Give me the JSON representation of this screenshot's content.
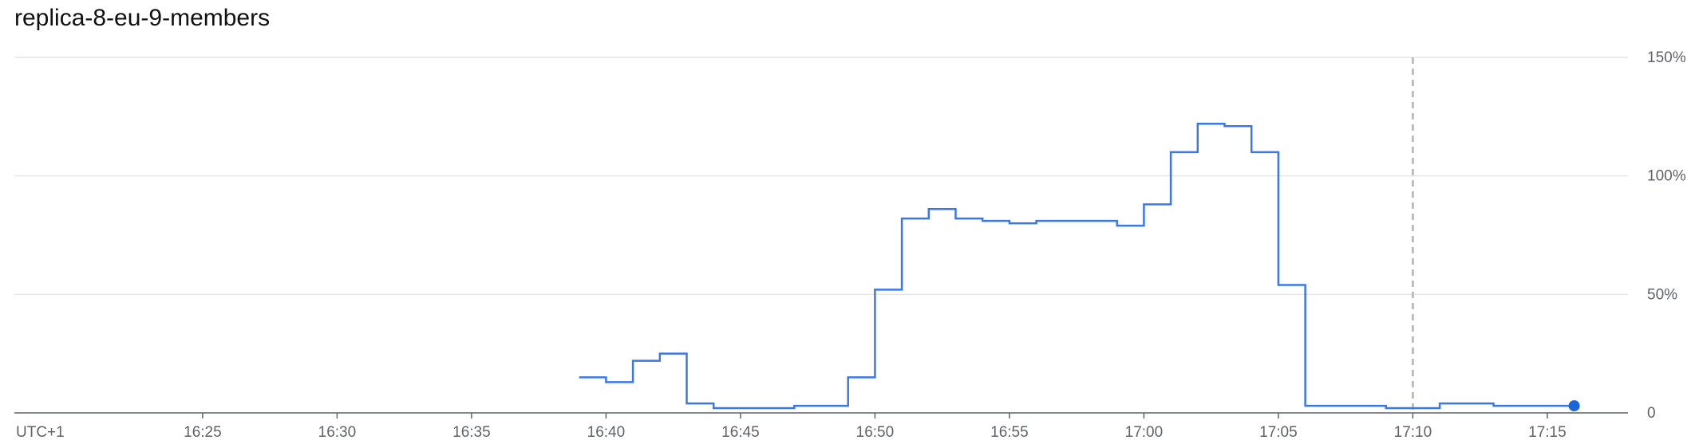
{
  "chart_data": {
    "type": "line",
    "title": "replica-8-eu-9-members",
    "timezone_label": "UTC+1",
    "x_ticks": [
      "16:25",
      "16:30",
      "16:35",
      "16:40",
      "16:45",
      "16:50",
      "16:55",
      "17:00",
      "17:05",
      "17:10",
      "17:15"
    ],
    "y_ticks": [
      "0",
      "50%",
      "100%",
      "150%"
    ],
    "ylim": [
      0,
      150
    ],
    "y_unit": "%",
    "x_range": [
      "16:18",
      "17:18"
    ],
    "grid": true,
    "marker_vertical_line": "17:10",
    "series": [
      {
        "color": "#3b78e7",
        "interpolation": "step",
        "points": [
          [
            "16:39",
            15
          ],
          [
            "16:40",
            13
          ],
          [
            "16:41",
            22
          ],
          [
            "16:42",
            25
          ],
          [
            "16:43",
            4
          ],
          [
            "16:44",
            2
          ],
          [
            "16:47",
            3
          ],
          [
            "16:49",
            15
          ],
          [
            "16:50",
            52
          ],
          [
            "16:51",
            82
          ],
          [
            "16:52",
            86
          ],
          [
            "16:53",
            82
          ],
          [
            "16:54",
            81
          ],
          [
            "16:55",
            80
          ],
          [
            "16:56",
            81
          ],
          [
            "16:57",
            81
          ],
          [
            "16:58",
            81
          ],
          [
            "16:59",
            79
          ],
          [
            "17:00",
            88
          ],
          [
            "17:01",
            110
          ],
          [
            "17:02",
            122
          ],
          [
            "17:03",
            121
          ],
          [
            "17:04",
            110
          ],
          [
            "17:05",
            54
          ],
          [
            "17:06",
            3
          ],
          [
            "17:09",
            2
          ],
          [
            "17:11",
            4
          ],
          [
            "17:13",
            3
          ],
          [
            "17:16",
            3
          ]
        ]
      }
    ]
  }
}
